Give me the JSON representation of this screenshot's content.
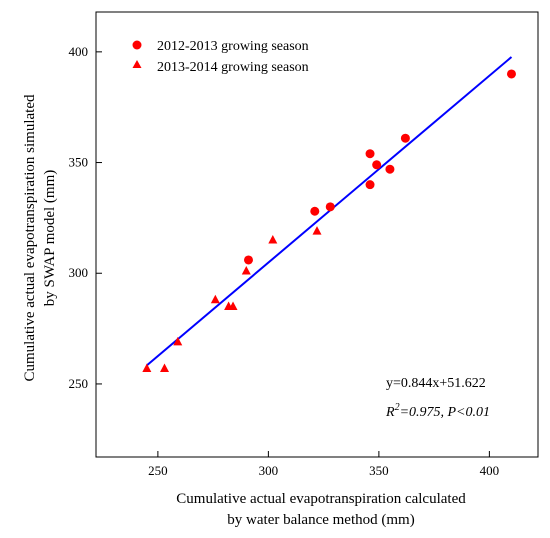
{
  "chart_data": {
    "type": "scatter",
    "xlabel_lines": [
      "Cumulative actual evapotranspiration calculated",
      "by water balance method (mm)"
    ],
    "ylabel_lines": [
      "Cumulative actual evapotranspiration simulated",
      "by SWAP model (mm)"
    ],
    "xlim": [
      222,
      422
    ],
    "ylim": [
      217,
      418
    ],
    "x_ticks": [
      250,
      300,
      350,
      400
    ],
    "y_ticks": [
      250,
      300,
      350,
      400
    ],
    "grid": false,
    "legend_position": "top-left",
    "series": [
      {
        "name": "2012-2013 growing season",
        "marker": "circle",
        "color": "#ff0000",
        "points": [
          [
            291,
            306
          ],
          [
            321,
            328
          ],
          [
            328,
            330
          ],
          [
            346,
            354
          ],
          [
            346,
            340
          ],
          [
            349,
            349
          ],
          [
            355,
            347
          ],
          [
            362,
            361
          ],
          [
            410,
            390
          ]
        ]
      },
      {
        "name": "2013-2014 growing season",
        "marker": "triangle",
        "color": "#ff0000",
        "points": [
          [
            245,
            257
          ],
          [
            253,
            257
          ],
          [
            259,
            269
          ],
          [
            276,
            288
          ],
          [
            282,
            285
          ],
          [
            284,
            285
          ],
          [
            290,
            301
          ],
          [
            302,
            315
          ],
          [
            322,
            319
          ]
        ]
      }
    ],
    "fit_line": {
      "color": "#0000ff",
      "slope": 0.844,
      "intercept": 51.622,
      "x_range": [
        245,
        410
      ]
    },
    "annotations": {
      "equation": "y=0.844x+51.622",
      "r_letter": "R",
      "r_exponent": "2",
      "r_rest": "=0.975, P<0.01"
    }
  }
}
